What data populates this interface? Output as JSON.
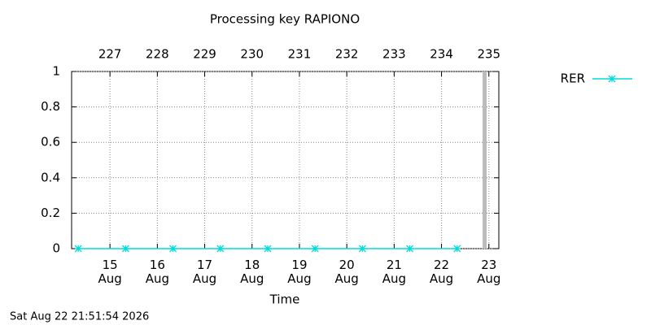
{
  "chart_data": {
    "type": "line",
    "title": "Processing key RAPIONO",
    "x_label": "Time",
    "footer": "Sat Aug 22 21:51:54 2026",
    "x": [
      226.33,
      227.33,
      228.33,
      229.33,
      230.33,
      231.33,
      232.33,
      233.33,
      234.33
    ],
    "series": [
      {
        "name": "RER",
        "color": "#00dcdc",
        "values": [
          0,
          0,
          0,
          0,
          0,
          0,
          0,
          0,
          0
        ]
      }
    ],
    "xlim": [
      226.19,
      235.21
    ],
    "xticks": [
      227,
      228,
      229,
      230,
      231,
      232,
      233,
      234,
      235
    ],
    "x2ticks": [
      {
        "value": 227,
        "label": "15\nAug"
      },
      {
        "value": 228,
        "label": "16\nAug"
      },
      {
        "value": 229,
        "label": "17\nAug"
      },
      {
        "value": 230,
        "label": "18\nAug"
      },
      {
        "value": 231,
        "label": "19\nAug"
      },
      {
        "value": 232,
        "label": "20\nAug"
      },
      {
        "value": 233,
        "label": "21\nAug"
      },
      {
        "value": 234,
        "label": "22\nAug"
      },
      {
        "value": 235,
        "label": "23\nAug"
      }
    ],
    "ylim": [
      0,
      1
    ],
    "yticks": [
      0,
      0.2,
      0.4,
      0.6,
      0.8,
      1
    ],
    "now_marker": 234.91,
    "grid": true,
    "legend": "right"
  }
}
